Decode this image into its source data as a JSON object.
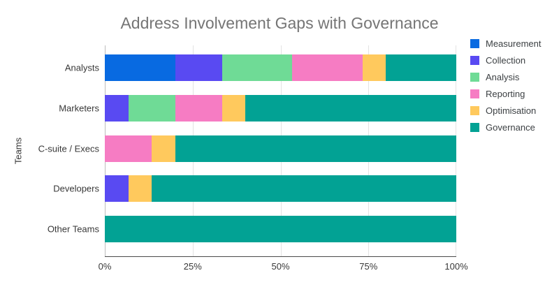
{
  "title": "Address Involvement Gaps with Governance",
  "axes": {
    "y_title": "Teams",
    "x_ticks": [
      "0%",
      "25%",
      "50%",
      "75%",
      "100%"
    ],
    "x_range": [
      0,
      100
    ]
  },
  "chart_data": {
    "type": "bar",
    "orientation": "horizontal",
    "stacked": true,
    "title": "Address Involvement Gaps with Governance",
    "xlabel": "",
    "ylabel": "Teams",
    "xlim": [
      0,
      100
    ],
    "x_tick_labels": [
      "0%",
      "25%",
      "50%",
      "75%",
      "100%"
    ],
    "grid": true,
    "legend_position": "right",
    "categories": [
      "Analysts",
      "Marketers",
      "C-suite / Execs",
      "Developers",
      "Other Teams"
    ],
    "series": [
      {
        "name": "Measurement",
        "color": "#086ae1",
        "values": [
          20,
          0,
          0,
          0,
          0
        ]
      },
      {
        "name": "Collection",
        "color": "#594af2",
        "values": [
          13.33,
          6.67,
          0,
          6.67,
          0
        ]
      },
      {
        "name": "Analysis",
        "color": "#6fdb96",
        "values": [
          20,
          13.33,
          0,
          0,
          0
        ]
      },
      {
        "name": "Reporting",
        "color": "#f67cc3",
        "values": [
          20,
          13.33,
          13.33,
          0,
          0
        ]
      },
      {
        "name": "Optimisation",
        "color": "#ffc95d",
        "values": [
          6.67,
          6.67,
          6.67,
          6.67,
          0
        ]
      },
      {
        "name": "Governance",
        "color": "#02a294",
        "values": [
          20,
          60,
          80,
          86.67,
          100
        ]
      }
    ]
  },
  "style": {
    "title_color": "#757575",
    "label_color": "#383838",
    "legend_text_color": "#3c4043",
    "gridline_color": "#e3e3e3",
    "axis_line_color": "#4a4a4a",
    "background": "#ffffff"
  }
}
